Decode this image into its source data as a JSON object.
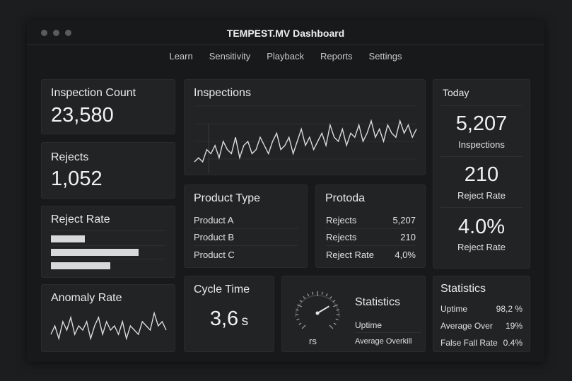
{
  "window": {
    "title": "TEMPEST.MV Dashboard"
  },
  "nav": [
    "Learn",
    "Sensitivity",
    "Playback",
    "Reports",
    "Settings"
  ],
  "inspection_count": {
    "title": "Inspection Count",
    "value": "23,580"
  },
  "rejects": {
    "title": "Rejects",
    "value": "1,052"
  },
  "reject_rate_card": {
    "title": "Reject Rate",
    "bars": [
      0.34,
      0.87,
      0.59
    ]
  },
  "anomaly_rate": {
    "title": "Anomaly Rate",
    "series": [
      3,
      5,
      2,
      6,
      4,
      7,
      3,
      5,
      4,
      6,
      2,
      5,
      7,
      3,
      6,
      4,
      5,
      3,
      6,
      2,
      5,
      4,
      3,
      6,
      5,
      4,
      8,
      5,
      6,
      4
    ]
  },
  "inspections_chart": {
    "title": "Inspections",
    "series": [
      3,
      4,
      3,
      6,
      5,
      7,
      4,
      8,
      6,
      5,
      9,
      4,
      7,
      8,
      5,
      6,
      9,
      7,
      5,
      8,
      10,
      6,
      7,
      9,
      5,
      8,
      11,
      7,
      9,
      6,
      8,
      10,
      7,
      12,
      9,
      8,
      11,
      7,
      10,
      9,
      12,
      8,
      10,
      13,
      9,
      11,
      8,
      12,
      10,
      9,
      13,
      10,
      12,
      9,
      11
    ]
  },
  "product_type": {
    "title": "Product Type",
    "items": [
      "Product A",
      "Product B",
      "Product C"
    ]
  },
  "protoda": {
    "title": "Protoda",
    "rows": [
      {
        "label": "Rejects",
        "value": "5,207"
      },
      {
        "label": "Rejects",
        "value": "210"
      },
      {
        "label": "Reject Rate",
        "value": "4,0%"
      }
    ]
  },
  "today": {
    "title": "Today",
    "items": [
      {
        "value": "5,207",
        "label": "Inspections"
      },
      {
        "value": "210",
        "label": "Reject Rate"
      },
      {
        "value": "4.0%",
        "label": "Reject Rate"
      }
    ]
  },
  "cycle_time": {
    "title": "Cycle Time",
    "value": "3,6",
    "unit": "s"
  },
  "gauge_card": {
    "unit": "rs",
    "level": 0.72,
    "title": "Statistics",
    "rows": [
      "Uptime",
      "Average Overkill"
    ]
  },
  "statistics": {
    "title": "Statistics",
    "rows": [
      {
        "label": "Uptime",
        "value": "98,2 %"
      },
      {
        "label": "Average Over",
        "value": "19%"
      },
      {
        "label": "False Fall Rate",
        "value": "0.4%"
      }
    ]
  },
  "colors": {
    "background": "#1c1d1f",
    "card": "#222325",
    "line": "#dcdcdc"
  }
}
